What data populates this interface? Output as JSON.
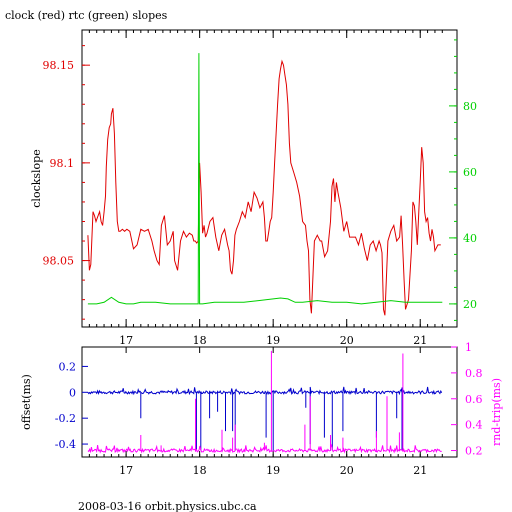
{
  "title": "clock (red) rtc (green) slopes",
  "footer": "2008-03-16 orbit.physics.ubc.ca",
  "colors": {
    "clock": "#e00000",
    "rtc": "#00d000",
    "offset": "#0000cc",
    "rndtrip": "#ff00ff",
    "frame": "#000000"
  },
  "chart_data": [
    {
      "type": "line",
      "name": "slopes",
      "ylabel_left": "clockslope",
      "xlim": [
        16.4,
        21.5
      ],
      "x_ticks": [
        "17",
        "18",
        "19",
        "20",
        "21"
      ],
      "ylim_left": [
        98.016,
        98.168
      ],
      "y_ticks_left": [
        "98.05",
        "98.1",
        "98.15"
      ],
      "ylim_right": [
        13,
        103
      ],
      "y_ticks_right": [
        "20",
        "40",
        "60",
        "80"
      ],
      "series": [
        {
          "axis": "left",
          "x": [
            16.48,
            16.5,
            16.52,
            16.55,
            16.57,
            16.59,
            16.61,
            16.64,
            16.66,
            16.68,
            16.7,
            16.72,
            16.73,
            16.75,
            16.77,
            16.79,
            16.8,
            16.82,
            16.84,
            16.86,
            16.88,
            16.9,
            16.92,
            16.95,
            16.98,
            17.01,
            17.05,
            17.1,
            17.15,
            17.2,
            17.25,
            17.3,
            17.35,
            17.38,
            17.42,
            17.45,
            17.48,
            17.52,
            17.56,
            17.6,
            17.64,
            17.66,
            17.7,
            17.74,
            17.78,
            17.82,
            17.86,
            17.9,
            17.92,
            17.94,
            17.96,
            17.98,
            18.0,
            18.02,
            18.04,
            18.06,
            18.08,
            18.1,
            18.14,
            18.18,
            18.22,
            18.26,
            18.3,
            18.34,
            18.38,
            18.4,
            18.42,
            18.44,
            18.46,
            18.48,
            18.5,
            18.54,
            18.58,
            18.62,
            18.66,
            18.7,
            18.74,
            18.78,
            18.82,
            18.86,
            18.88,
            18.9,
            18.92,
            18.94,
            18.96,
            18.98,
            19.0,
            19.02,
            19.04,
            19.06,
            19.08,
            19.1,
            19.12,
            19.14,
            19.16,
            19.18,
            19.2,
            19.22,
            19.24,
            19.28,
            19.32,
            19.36,
            19.4,
            19.44,
            19.46,
            19.48,
            19.5,
            19.52,
            19.56,
            19.6,
            19.64,
            19.66,
            19.7,
            19.74,
            19.78,
            19.8,
            19.82,
            19.84,
            19.86,
            19.88,
            19.92,
            19.96,
            20.0,
            20.04,
            20.08,
            20.12,
            20.16,
            20.2,
            20.24,
            20.28,
            20.32,
            20.36,
            20.4,
            20.44,
            20.46,
            20.48,
            20.5,
            20.52,
            20.56,
            20.6,
            20.64,
            20.68,
            20.72,
            20.74,
            20.76,
            20.78,
            20.8,
            20.84,
            20.88,
            20.9,
            20.92,
            20.94,
            20.96,
            20.98,
            21.0,
            21.02,
            21.04,
            21.06,
            21.08,
            21.1,
            21.12,
            21.14,
            21.16,
            21.18,
            21.2,
            21.24,
            21.28
          ],
          "y": [
            98.063,
            98.045,
            98.048,
            98.075,
            98.073,
            98.07,
            98.072,
            98.075,
            98.07,
            98.068,
            98.075,
            98.083,
            98.098,
            98.112,
            98.118,
            98.12,
            98.125,
            98.128,
            98.115,
            98.09,
            98.07,
            98.065,
            98.065,
            98.066,
            98.065,
            98.066,
            98.065,
            98.056,
            98.058,
            98.066,
            98.065,
            98.066,
            98.06,
            98.055,
            98.05,
            98.048,
            98.068,
            98.073,
            98.058,
            98.06,
            98.065,
            98.05,
            98.045,
            98.06,
            98.065,
            98.062,
            98.064,
            98.063,
            98.06,
            98.06,
            98.059,
            98.06,
            98.1,
            98.085,
            98.064,
            98.068,
            98.062,
            98.064,
            98.07,
            98.072,
            98.062,
            98.055,
            98.063,
            98.066,
            98.058,
            98.055,
            98.045,
            98.043,
            98.05,
            98.063,
            98.066,
            98.07,
            98.075,
            98.072,
            98.08,
            98.075,
            98.085,
            98.082,
            98.077,
            98.08,
            98.072,
            98.06,
            98.06,
            98.065,
            98.07,
            98.072,
            98.085,
            98.1,
            98.115,
            98.13,
            98.143,
            98.148,
            98.152,
            98.15,
            98.145,
            98.14,
            98.13,
            98.11,
            98.1,
            98.095,
            98.09,
            98.083,
            98.07,
            98.068,
            98.06,
            98.055,
            98.03,
            98.023,
            98.06,
            98.063,
            98.06,
            98.06,
            98.052,
            98.055,
            98.07,
            98.088,
            98.092,
            98.08,
            98.09,
            98.085,
            98.077,
            98.065,
            98.07,
            98.062,
            98.062,
            98.062,
            98.058,
            98.064,
            98.056,
            98.05,
            98.058,
            98.06,
            98.055,
            98.06,
            98.058,
            98.054,
            98.025,
            98.022,
            98.06,
            98.065,
            98.068,
            98.06,
            98.062,
            98.073,
            98.058,
            98.04,
            98.025,
            98.03,
            98.055,
            98.08,
            98.078,
            98.07,
            98.058,
            98.075,
            98.09,
            98.108,
            98.1,
            98.075,
            98.07,
            98.072,
            98.064,
            98.06,
            98.066,
            98.062,
            98.055,
            98.058,
            98.058
          ]
        },
        {
          "axis": "right",
          "x": [
            16.48,
            16.6,
            16.7,
            16.8,
            16.9,
            17.0,
            17.1,
            17.2,
            17.4,
            17.6,
            17.8,
            17.96,
            17.98,
            17.99,
            18.0,
            18.01,
            18.02,
            18.04,
            18.2,
            18.4,
            18.6,
            18.8,
            19.0,
            19.1,
            19.2,
            19.3,
            19.4,
            19.6,
            19.8,
            20.0,
            20.2,
            20.4,
            20.6,
            20.8,
            21.0,
            21.2,
            21.3
          ],
          "y": [
            20,
            20,
            20.5,
            22,
            20.5,
            20,
            20,
            20.5,
            20.5,
            20,
            20,
            20,
            20,
            96,
            20,
            20,
            20,
            20,
            20.5,
            20.5,
            20.5,
            21,
            21.5,
            21.8,
            21.5,
            20.5,
            20.5,
            21,
            20.5,
            20.5,
            20,
            20.5,
            21,
            20.5,
            20.5,
            20.5,
            20.5
          ]
        }
      ]
    },
    {
      "type": "line",
      "name": "offset",
      "ylabel_left": "offset(ms)",
      "ylabel_right": "rnd-trip(ms)",
      "xlim": [
        16.4,
        21.5
      ],
      "x_ticks": [
        "17",
        "18",
        "19",
        "20",
        "21"
      ],
      "ylim_left": [
        -0.5,
        0.35
      ],
      "y_ticks_left": [
        "0.2",
        "0",
        "-0.2",
        "-0.4"
      ],
      "ylim_right": [
        0.15,
        1.0
      ],
      "y_ticks_right": [
        "1",
        "0.8",
        "0.6",
        "0.4",
        "0.2"
      ],
      "series": [
        {
          "axis": "left",
          "baseline": 0.0,
          "spikes_x": [
            17.2,
            17.96,
            18.02,
            18.14,
            18.25,
            18.35,
            18.45,
            18.49,
            18.9,
            19.0,
            19.45,
            19.5,
            19.7,
            19.8,
            19.95,
            20.4,
            20.68,
            20.75
          ],
          "spikes_y": [
            -0.2,
            -0.45,
            -0.45,
            -0.2,
            -0.15,
            -0.3,
            -0.3,
            -0.45,
            -0.35,
            -0.45,
            -0.12,
            -0.4,
            -0.35,
            -0.45,
            -0.3,
            -0.35,
            -0.2,
            -0.45
          ]
        },
        {
          "axis": "right",
          "baseline": 0.2,
          "spikes_x": [
            17.2,
            17.48,
            17.95,
            18.3,
            18.45,
            18.49,
            18.88,
            18.98,
            19.43,
            19.5,
            19.78,
            19.95,
            20.4,
            20.55,
            20.72,
            20.76
          ],
          "spikes_y": [
            0.32,
            0.24,
            0.6,
            0.36,
            0.3,
            0.4,
            0.26,
            0.97,
            0.4,
            0.62,
            0.32,
            0.3,
            0.35,
            0.62,
            0.34,
            0.95
          ]
        }
      ]
    }
  ]
}
